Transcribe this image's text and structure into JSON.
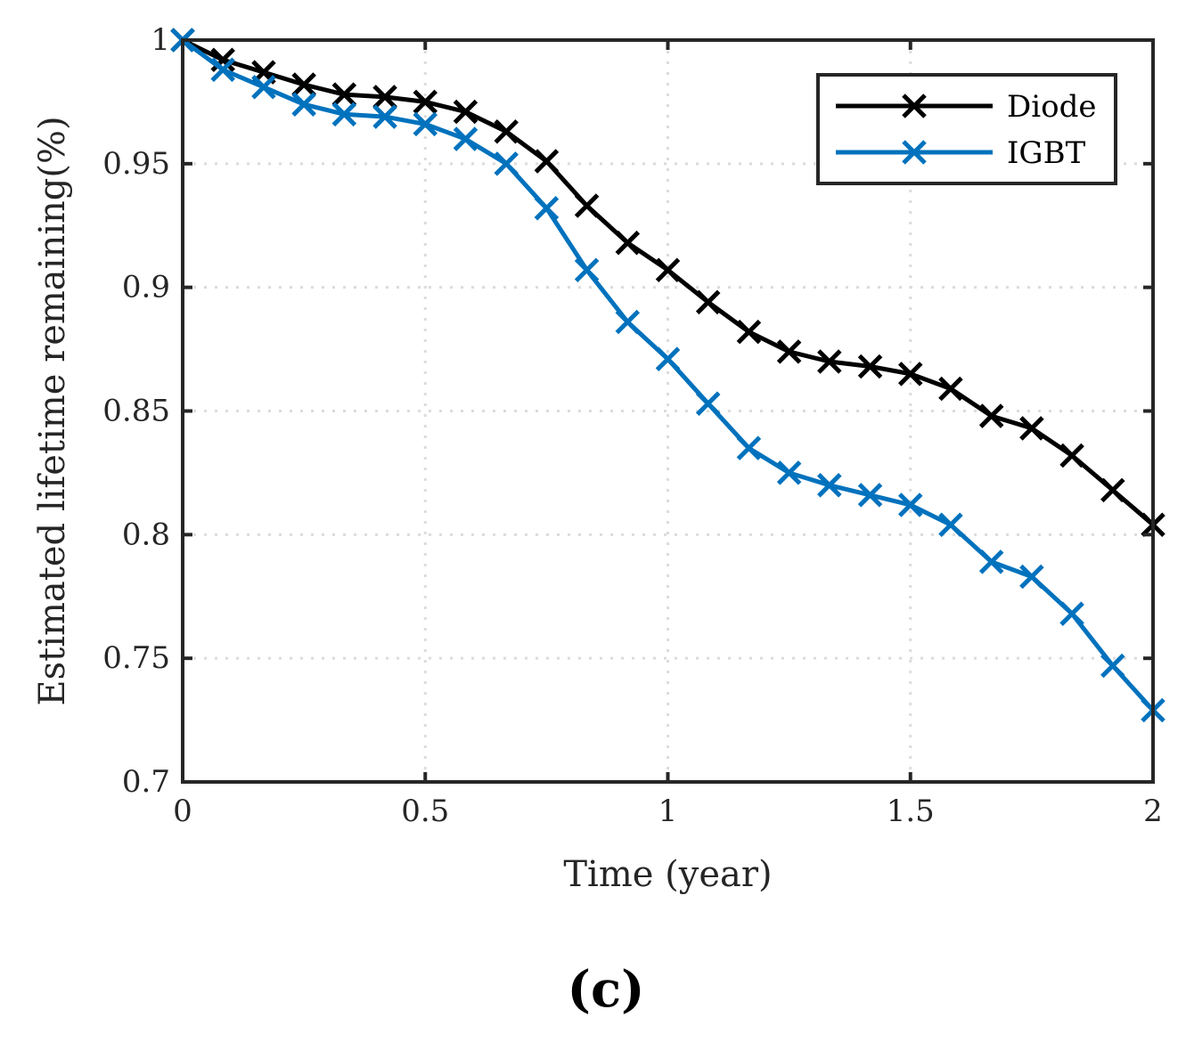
{
  "chart_data": {
    "type": "line",
    "xlabel": "Time (year)",
    "ylabel": "Estimated lifetime remaining(%)",
    "xlim": [
      0,
      2
    ],
    "ylim": [
      0.7,
      1
    ],
    "xticks": [
      0,
      0.5,
      1,
      1.5,
      2
    ],
    "xtick_labels": [
      "0",
      "0.5",
      "1",
      "1.5",
      "2"
    ],
    "yticks": [
      0.7,
      0.75,
      0.8,
      0.85,
      0.9,
      0.95,
      1
    ],
    "ytick_labels": [
      "0.7",
      "0.75",
      "0.8",
      "0.85",
      "0.9",
      "0.95",
      "1"
    ],
    "grid": true,
    "legend_position": "top-right",
    "x": [
      0,
      0.083,
      0.167,
      0.25,
      0.333,
      0.417,
      0.5,
      0.583,
      0.667,
      0.75,
      0.833,
      0.917,
      1.0,
      1.083,
      1.167,
      1.25,
      1.333,
      1.417,
      1.5,
      1.583,
      1.667,
      1.75,
      1.833,
      1.917,
      2.0
    ],
    "series": [
      {
        "name": "Diode",
        "color": "#000000",
        "marker": "x",
        "values": [
          1.0,
          0.992,
          0.987,
          0.982,
          0.978,
          0.977,
          0.975,
          0.971,
          0.963,
          0.951,
          0.933,
          0.918,
          0.907,
          0.894,
          0.882,
          0.874,
          0.87,
          0.868,
          0.865,
          0.859,
          0.848,
          0.843,
          0.832,
          0.818,
          0.804
        ]
      },
      {
        "name": "IGBT",
        "color": "#0072BD",
        "marker": "x",
        "values": [
          1.0,
          0.988,
          0.981,
          0.974,
          0.97,
          0.969,
          0.966,
          0.96,
          0.95,
          0.932,
          0.907,
          0.886,
          0.871,
          0.853,
          0.835,
          0.825,
          0.82,
          0.816,
          0.812,
          0.804,
          0.789,
          0.783,
          0.768,
          0.747,
          0.729
        ]
      }
    ]
  },
  "panel_label": "(c)"
}
